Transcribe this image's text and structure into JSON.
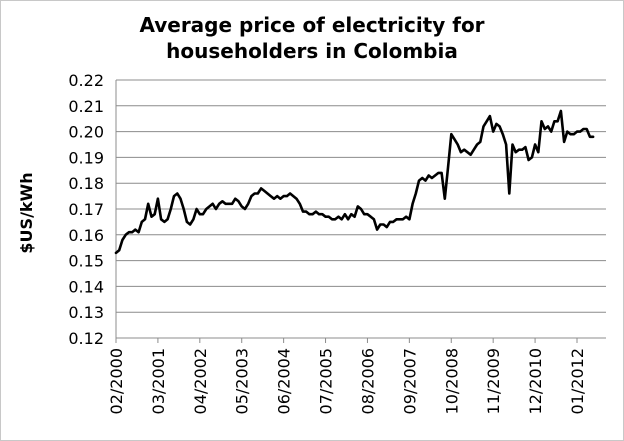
{
  "chart_data": {
    "type": "line",
    "title": "Average price of electricity for householders in Colombia",
    "title_lines": [
      "Average price of electricity for",
      "householders in Colombia"
    ],
    "ylabel": "$US/kWh",
    "xlabel": "",
    "ylim": [
      0.12,
      0.22
    ],
    "yticks": [
      "0.12",
      "0.13",
      "0.14",
      "0.15",
      "0.16",
      "0.17",
      "0.18",
      "0.19",
      "0.20",
      "0.21",
      "0.22"
    ],
    "xticks": [
      "02/2000",
      "03/2001",
      "04/2002",
      "05/2003",
      "06/2004",
      "07/2005",
      "08/2006",
      "09/2007",
      "10/2008",
      "11/2009",
      "12/2010",
      "01/2012"
    ],
    "xlim": [
      "02/2000",
      "10/2012"
    ],
    "grid": "horizontal",
    "legend": "none",
    "line_color": "#000000",
    "series": [
      {
        "points": [
          [
            "02/2000",
            0.153
          ],
          [
            "03/2000",
            0.154
          ],
          [
            "04/2000",
            0.158
          ],
          [
            "05/2000",
            0.16
          ],
          [
            "06/2000",
            0.161
          ],
          [
            "07/2000",
            0.161
          ],
          [
            "08/2000",
            0.162
          ],
          [
            "09/2000",
            0.161
          ],
          [
            "10/2000",
            0.165
          ],
          [
            "11/2000",
            0.166
          ],
          [
            "12/2000",
            0.172
          ],
          [
            "01/2001",
            0.167
          ],
          [
            "02/2001",
            0.168
          ],
          [
            "03/2001",
            0.174
          ],
          [
            "04/2001",
            0.166
          ],
          [
            "05/2001",
            0.165
          ],
          [
            "06/2001",
            0.166
          ],
          [
            "07/2001",
            0.17
          ],
          [
            "08/2001",
            0.175
          ],
          [
            "09/2001",
            0.176
          ],
          [
            "10/2001",
            0.174
          ],
          [
            "11/2001",
            0.17
          ],
          [
            "12/2001",
            0.165
          ],
          [
            "01/2002",
            0.164
          ],
          [
            "02/2002",
            0.166
          ],
          [
            "03/2002",
            0.17
          ],
          [
            "04/2002",
            0.168
          ],
          [
            "05/2002",
            0.168
          ],
          [
            "06/2002",
            0.17
          ],
          [
            "07/2002",
            0.171
          ],
          [
            "08/2002",
            0.172
          ],
          [
            "09/2002",
            0.17
          ],
          [
            "10/2002",
            0.172
          ],
          [
            "11/2002",
            0.173
          ],
          [
            "12/2002",
            0.172
          ],
          [
            "01/2003",
            0.172
          ],
          [
            "02/2003",
            0.172
          ],
          [
            "03/2003",
            0.174
          ],
          [
            "04/2003",
            0.173
          ],
          [
            "05/2003",
            0.171
          ],
          [
            "06/2003",
            0.17
          ],
          [
            "07/2003",
            0.172
          ],
          [
            "08/2003",
            0.175
          ],
          [
            "09/2003",
            0.176
          ],
          [
            "10/2003",
            0.176
          ],
          [
            "11/2003",
            0.178
          ],
          [
            "12/2003",
            0.177
          ],
          [
            "01/2004",
            0.176
          ],
          [
            "02/2004",
            0.175
          ],
          [
            "03/2004",
            0.174
          ],
          [
            "04/2004",
            0.175
          ],
          [
            "05/2004",
            0.174
          ],
          [
            "06/2004",
            0.175
          ],
          [
            "07/2004",
            0.175
          ],
          [
            "08/2004",
            0.176
          ],
          [
            "09/2004",
            0.175
          ],
          [
            "10/2004",
            0.174
          ],
          [
            "11/2004",
            0.172
          ],
          [
            "12/2004",
            0.169
          ],
          [
            "01/2005",
            0.169
          ],
          [
            "02/2005",
            0.168
          ],
          [
            "03/2005",
            0.168
          ],
          [
            "04/2005",
            0.169
          ],
          [
            "05/2005",
            0.168
          ],
          [
            "06/2005",
            0.168
          ],
          [
            "07/2005",
            0.167
          ],
          [
            "08/2005",
            0.167
          ],
          [
            "09/2005",
            0.166
          ],
          [
            "10/2005",
            0.166
          ],
          [
            "11/2005",
            0.167
          ],
          [
            "12/2005",
            0.166
          ],
          [
            "01/2006",
            0.168
          ],
          [
            "02/2006",
            0.166
          ],
          [
            "03/2006",
            0.168
          ],
          [
            "04/2006",
            0.167
          ],
          [
            "05/2006",
            0.171
          ],
          [
            "06/2006",
            0.17
          ],
          [
            "07/2006",
            0.168
          ],
          [
            "08/2006",
            0.168
          ],
          [
            "09/2006",
            0.167
          ],
          [
            "10/2006",
            0.166
          ],
          [
            "11/2006",
            0.162
          ],
          [
            "12/2006",
            0.164
          ],
          [
            "01/2007",
            0.164
          ],
          [
            "02/2007",
            0.163
          ],
          [
            "03/2007",
            0.165
          ],
          [
            "04/2007",
            0.165
          ],
          [
            "05/2007",
            0.166
          ],
          [
            "06/2007",
            0.166
          ],
          [
            "07/2007",
            0.166
          ],
          [
            "08/2007",
            0.167
          ],
          [
            "09/2007",
            0.166
          ],
          [
            "10/2007",
            0.172
          ],
          [
            "11/2007",
            0.176
          ],
          [
            "12/2007",
            0.181
          ],
          [
            "01/2008",
            0.182
          ],
          [
            "02/2008",
            0.181
          ],
          [
            "03/2008",
            0.183
          ],
          [
            "04/2008",
            0.182
          ],
          [
            "05/2008",
            0.183
          ],
          [
            "06/2008",
            0.184
          ],
          [
            "07/2008",
            0.184
          ],
          [
            "08/2008",
            0.174
          ],
          [
            "09/2008",
            0.186
          ],
          [
            "10/2008",
            0.199
          ],
          [
            "11/2008",
            0.197
          ],
          [
            "12/2008",
            0.195
          ],
          [
            "01/2009",
            0.192
          ],
          [
            "02/2009",
            0.193
          ],
          [
            "03/2009",
            0.192
          ],
          [
            "04/2009",
            0.191
          ],
          [
            "05/2009",
            0.193
          ],
          [
            "06/2009",
            0.195
          ],
          [
            "07/2009",
            0.196
          ],
          [
            "08/2009",
            0.202
          ],
          [
            "09/2009",
            0.204
          ],
          [
            "10/2009",
            0.206
          ],
          [
            "11/2009",
            0.2
          ],
          [
            "12/2009",
            0.203
          ],
          [
            "01/2010",
            0.202
          ],
          [
            "02/2010",
            0.199
          ],
          [
            "03/2010",
            0.195
          ],
          [
            "04/2010",
            0.176
          ],
          [
            "05/2010",
            0.195
          ],
          [
            "06/2010",
            0.192
          ],
          [
            "07/2010",
            0.193
          ],
          [
            "08/2010",
            0.193
          ],
          [
            "09/2010",
            0.194
          ],
          [
            "10/2010",
            0.189
          ],
          [
            "11/2010",
            0.19
          ],
          [
            "12/2010",
            0.195
          ],
          [
            "01/2011",
            0.192
          ],
          [
            "02/2011",
            0.204
          ],
          [
            "03/2011",
            0.201
          ],
          [
            "04/2011",
            0.202
          ],
          [
            "05/2011",
            0.2
          ],
          [
            "06/2011",
            0.204
          ],
          [
            "07/2011",
            0.204
          ],
          [
            "08/2011",
            0.208
          ],
          [
            "09/2011",
            0.196
          ],
          [
            "10/2011",
            0.2
          ],
          [
            "11/2011",
            0.199
          ],
          [
            "12/2011",
            0.199
          ],
          [
            "01/2012",
            0.2
          ],
          [
            "02/2012",
            0.2
          ],
          [
            "03/2012",
            0.201
          ],
          [
            "04/2012",
            0.201
          ],
          [
            "05/2012",
            0.198
          ],
          [
            "06/2012",
            0.198
          ]
        ]
      }
    ]
  }
}
